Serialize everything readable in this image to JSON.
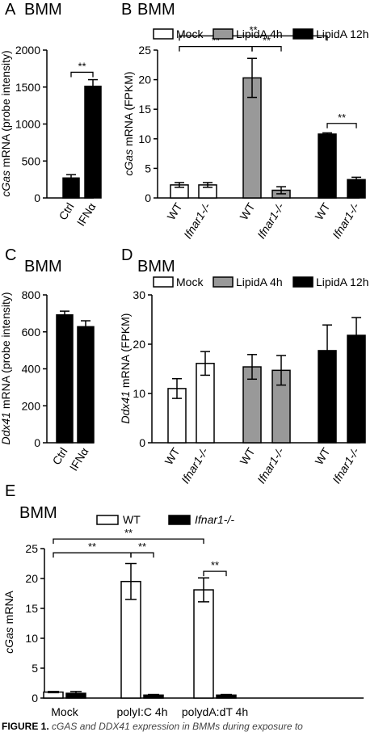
{
  "caption": {
    "label": "FIGURE 1.",
    "text": "cGAS and DDX41 expression in BMMs during exposure to"
  },
  "chart_data": [
    {
      "panel": "A",
      "panel_title": "BMM",
      "type": "bar",
      "categories": [
        "Ctrl",
        "IFNα"
      ],
      "series": [
        {
          "values": [
            270,
            1510
          ],
          "errors": [
            45,
            90
          ],
          "colors": [
            "#000000",
            "#000000"
          ]
        }
      ],
      "ylabel": "cGas mRNA (probe intensity)",
      "ylabel_parts": [
        {
          "t": "cGas",
          "i": true
        },
        {
          "t": " mRNA (probe intensity)",
          "i": false
        }
      ],
      "ylim": [
        0,
        2000
      ],
      "yticks": [
        "0",
        "500",
        "1000",
        "1500",
        "2000"
      ],
      "significance": [
        {
          "from": 0,
          "to": 1,
          "label": "**",
          "level": 1700
        }
      ],
      "legend": []
    },
    {
      "panel": "B",
      "panel_title": "BMM",
      "type": "bar",
      "categories": [
        "WT",
        "Ifnar1-/-",
        "WT",
        "Ifnar1-/-",
        "WT",
        "Ifnar1-/-"
      ],
      "category_italic": [
        false,
        true,
        false,
        true,
        false,
        true
      ],
      "series": [
        {
          "values": [
            2.2,
            2.2,
            20.3,
            1.3,
            10.8,
            3.1
          ],
          "errors": [
            0.4,
            0.4,
            3.3,
            0.6,
            0.2,
            0.4
          ],
          "colors": [
            "#ffffff",
            "#ffffff",
            "#999999",
            "#999999",
            "#000000",
            "#000000"
          ]
        }
      ],
      "ylabel": "cGas mRNA (FPKM)",
      "ylabel_parts": [
        {
          "t": "cGas",
          "i": true
        },
        {
          "t": " mRNA (FPKM)",
          "i": false
        }
      ],
      "ylim": [
        0,
        25
      ],
      "yticks": [
        "0",
        "5",
        "10",
        "15",
        "20",
        "25"
      ],
      "significance": [
        {
          "from": 0,
          "to": 2,
          "label": "**",
          "level": 25.6
        },
        {
          "from": 2,
          "to": 3,
          "label": "**",
          "level": 25.6
        },
        {
          "from": 0,
          "to": 4,
          "label": "**",
          "level": 27.4
        },
        {
          "from": 4,
          "to": 5,
          "label": "**",
          "level": 12.6
        }
      ],
      "legend": [
        {
          "name": "Mock",
          "color": "#ffffff"
        },
        {
          "name": "LipidA 4h",
          "color": "#999999"
        },
        {
          "name": "LipidA 12h",
          "color": "#000000"
        }
      ]
    },
    {
      "panel": "C",
      "panel_title": "BMM",
      "type": "bar",
      "categories": [
        "Ctrl",
        "IFNα"
      ],
      "series": [
        {
          "values": [
            692,
            628
          ],
          "errors": [
            20,
            32
          ],
          "colors": [
            "#000000",
            "#000000"
          ]
        }
      ],
      "ylabel": "Ddx41 mRNA (probe intensity)",
      "ylabel_parts": [
        {
          "t": "Ddx41",
          "i": true
        },
        {
          "t": " mRNA (probe intensity)",
          "i": false
        }
      ],
      "ylim": [
        0,
        800
      ],
      "yticks": [
        "0",
        "200",
        "400",
        "600",
        "800"
      ],
      "significance": [],
      "legend": []
    },
    {
      "panel": "D",
      "panel_title": "BMM",
      "type": "bar",
      "categories": [
        "WT",
        "Ifnar1-/-",
        "WT",
        "Ifnar1-/-",
        "WT",
        "Ifnar1-/-"
      ],
      "category_italic": [
        false,
        true,
        false,
        true,
        false,
        true
      ],
      "series": [
        {
          "values": [
            11.0,
            16.1,
            15.4,
            14.7,
            18.7,
            21.8
          ],
          "errors": [
            2.0,
            2.4,
            2.5,
            3.0,
            5.2,
            3.6
          ],
          "colors": [
            "#ffffff",
            "#ffffff",
            "#999999",
            "#999999",
            "#000000",
            "#000000"
          ]
        }
      ],
      "ylabel": "Ddx41 mRNA (FPKM)",
      "ylabel_parts": [
        {
          "t": "Ddx41",
          "i": true
        },
        {
          "t": " mRNA (FPKM)",
          "i": false
        }
      ],
      "ylim": [
        0,
        30
      ],
      "yticks": [
        "0",
        "10",
        "20",
        "30"
      ],
      "significance": [],
      "legend": [
        {
          "name": "Mock",
          "color": "#ffffff"
        },
        {
          "name": "LipidA 4h",
          "color": "#999999"
        },
        {
          "name": "LipidA 12h",
          "color": "#000000"
        }
      ]
    },
    {
      "panel": "E",
      "panel_title": "BMM",
      "type": "bar",
      "categories": [
        "Mock",
        "polyI:C 4h",
        "polydA:dT 4h"
      ],
      "series": [
        {
          "name": "WT",
          "values": [
            1.0,
            19.5,
            18.1
          ],
          "errors": [
            0.1,
            3.0,
            2.0
          ],
          "color": "#ffffff"
        },
        {
          "name": "Ifnar1-/-",
          "values": [
            0.8,
            0.5,
            0.5
          ],
          "errors": [
            0.3,
            0.1,
            0.1
          ],
          "color": "#000000"
        }
      ],
      "ylabel": "cGas mRNA",
      "ylabel_parts": [
        {
          "t": "cGas",
          "i": true
        },
        {
          "t": " mRNA",
          "i": false
        }
      ],
      "ylim": [
        0,
        25
      ],
      "yticks": [
        "0",
        "5",
        "10",
        "15",
        "20",
        "25"
      ],
      "significance": [
        {
          "from": [
            0,
            0
          ],
          "to": [
            1,
            0
          ],
          "label": "**",
          "level": 24.3
        },
        {
          "from": [
            1,
            0
          ],
          "to": [
            1,
            1
          ],
          "label": "**",
          "level": 24.3
        },
        {
          "from": [
            0,
            0
          ],
          "to": [
            2,
            0
          ],
          "label": "**",
          "level": 26.6
        },
        {
          "from": [
            2,
            0
          ],
          "to": [
            2,
            1
          ],
          "label": "**",
          "level": 21.2
        }
      ],
      "legend": [
        {
          "name": "WT",
          "color": "#ffffff",
          "italic": false
        },
        {
          "name": "Ifnar1-/-",
          "color": "#000000",
          "italic": true
        }
      ]
    }
  ]
}
